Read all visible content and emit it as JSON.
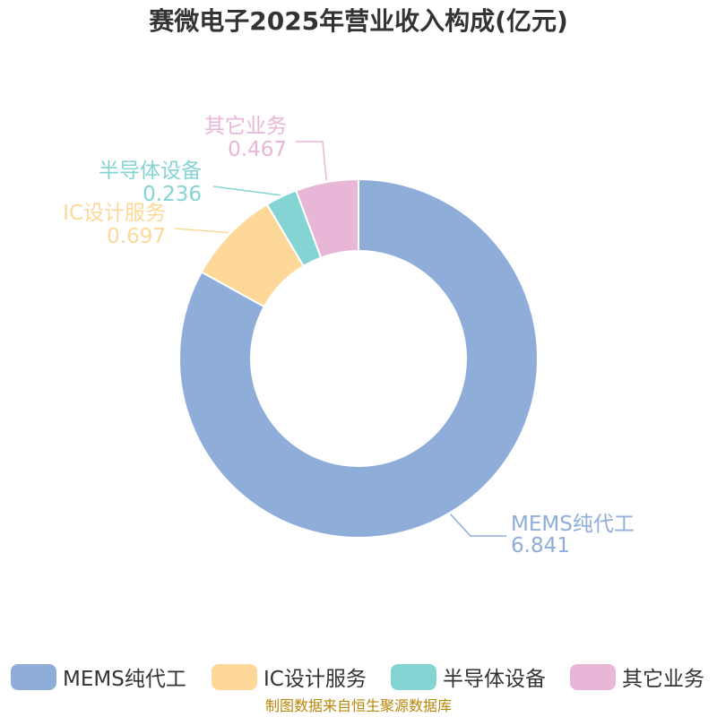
{
  "chart_data": {
    "type": "pie",
    "subtype": "donut",
    "title": "赛微电子2025年营业收入构成(亿元)",
    "slices": [
      {
        "name": "MEMS纯代工",
        "value": 6.841,
        "color": "#8fadd9"
      },
      {
        "name": "IC设计服务",
        "value": 0.697,
        "color": "#fed899"
      },
      {
        "name": "半导体设备",
        "value": 0.236,
        "color": "#85d4d4"
      },
      {
        "name": "其它业务",
        "value": 0.467,
        "color": "#e8b6d6"
      }
    ],
    "legend_position": "bottom",
    "source": "制图数据来自恒生聚源数据库"
  }
}
